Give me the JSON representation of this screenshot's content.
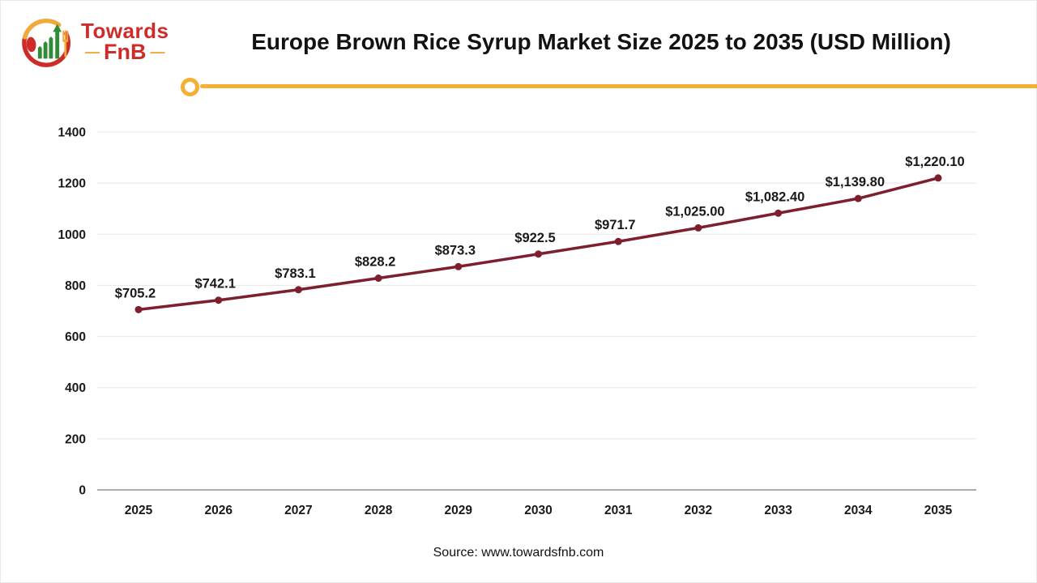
{
  "logo": {
    "brand_top": "Towards",
    "brand_bottom": "FnB",
    "dash": "—"
  },
  "header": {
    "title": "Europe Brown Rice Syrup Market Size 2025 to 2035 (USD Million)"
  },
  "footer": {
    "source": "Source: www.towardsfnb.com"
  },
  "colors": {
    "accent_yellow": "#F5AF32",
    "logo_yellow": "#F2A93B",
    "logo_red": "#CE2C28",
    "logo_green": "#2F8B35"
  },
  "chart_data": {
    "type": "line",
    "title": "Europe Brown Rice Syrup Market Size 2025 to 2035 (USD Million)",
    "xlabel": "",
    "ylabel": "",
    "categories": [
      "2025",
      "2026",
      "2027",
      "2028",
      "2029",
      "2030",
      "2031",
      "2032",
      "2033",
      "2034",
      "2035"
    ],
    "values": [
      705.2,
      742.1,
      783.1,
      828.2,
      873.3,
      922.5,
      971.7,
      1025.0,
      1082.4,
      1139.8,
      1220.1
    ],
    "point_labels": [
      "$705.2",
      "$742.1",
      "$783.1",
      "$828.2",
      "$873.3",
      "$922.5",
      "$971.7",
      "$1,025.00",
      "$1,082.40",
      "$1,139.80",
      "$1,220.10"
    ],
    "ylim": [
      0,
      1400
    ],
    "yticks": [
      0,
      200,
      400,
      600,
      800,
      1000,
      1200,
      1400
    ],
    "ytick_labels": [
      "0",
      "200",
      "400",
      "600",
      "800",
      "1000",
      "1200",
      "1400"
    ],
    "grid": "horizontal",
    "legend": "none",
    "colors": {
      "line": "#7D1F2D",
      "grid": "#E7E7E7",
      "axis": "#ABABAB",
      "text": "#1A1A1A"
    }
  }
}
